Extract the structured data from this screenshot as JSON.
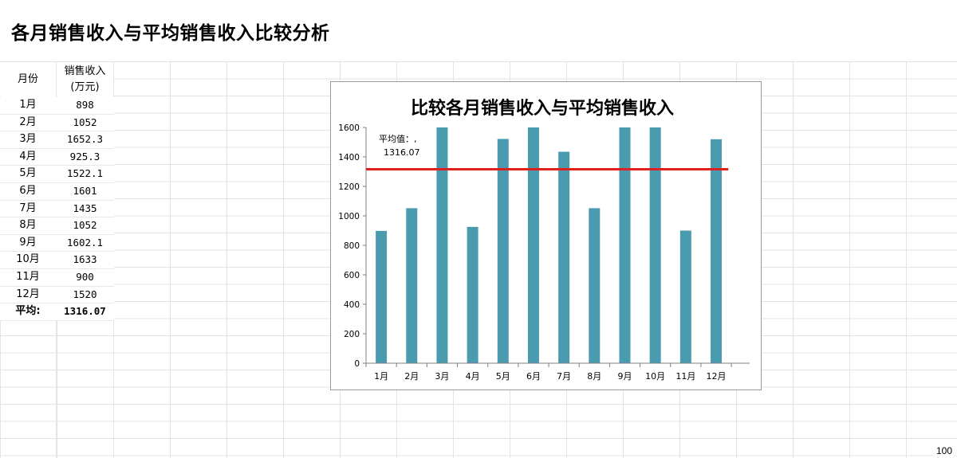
{
  "page": {
    "title": "各月销售收入与平均销售收入比较分析",
    "zoom": "100"
  },
  "table": {
    "header_month": "月份",
    "header_sales_line1": "销售收入",
    "header_sales_line2": "(万元)",
    "rows": [
      {
        "month": "1月",
        "value": "898"
      },
      {
        "month": "2月",
        "value": "1052"
      },
      {
        "month": "3月",
        "value": "1652.3"
      },
      {
        "month": "4月",
        "value": "925.3"
      },
      {
        "month": "5月",
        "value": "1522.1"
      },
      {
        "month": "6月",
        "value": "1601"
      },
      {
        "month": "7月",
        "value": "1435"
      },
      {
        "month": "8月",
        "value": "1052"
      },
      {
        "month": "9月",
        "value": "1602.1"
      },
      {
        "month": "10月",
        "value": "1633"
      },
      {
        "month": "11月",
        "value": "900"
      },
      {
        "month": "12月",
        "value": "1520"
      }
    ],
    "avg_label": "平均:",
    "avg_value": "1316.07"
  },
  "chart_data": {
    "type": "bar",
    "title": "比较各月销售收入与平均销售收入",
    "categories": [
      "1月",
      "2月",
      "3月",
      "4月",
      "5月",
      "6月",
      "7月",
      "8月",
      "9月",
      "10月",
      "11月",
      "12月"
    ],
    "values": [
      898,
      1052,
      1652.3,
      925.3,
      1522.1,
      1601,
      1435,
      1052,
      1602.1,
      1633,
      900,
      1520
    ],
    "ylim": [
      0,
      1600
    ],
    "yticks": [
      0,
      200,
      400,
      600,
      800,
      1000,
      1200,
      1400,
      1600
    ],
    "average_line": {
      "value": 1316.07,
      "label_line1": "平均值：,",
      "label_line2": "1316.07"
    },
    "colors": {
      "bar": "#4a9bb0",
      "average_line": "#e0201f"
    },
    "grid": false,
    "legend": "none"
  }
}
